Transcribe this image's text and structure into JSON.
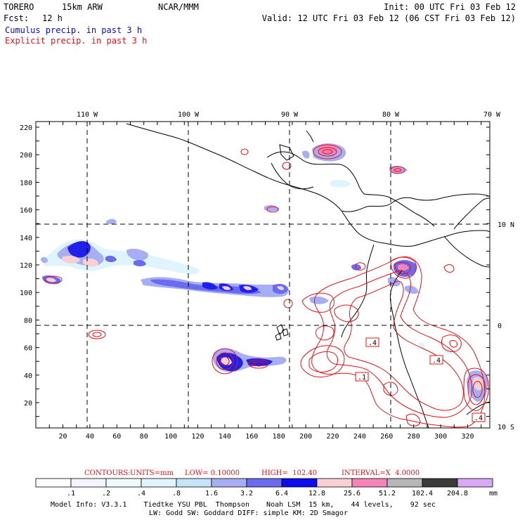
{
  "header": {
    "model": "TORERO",
    "resolution": "15km ARW",
    "source": "NCAR/MMM",
    "init": "Init: 00 UTC Fri 03 Feb 12",
    "fcst_label": "Fcst:",
    "fcst_value": "12 h",
    "valid": "Valid: 12 UTC Fri 03 Feb 12 (06 CST Fri 03 Feb 12)",
    "legend_cumulus": "Cumulus precip. in past 3 h",
    "legend_explicit": "Explicit precip. in past 3 h"
  },
  "map": {
    "top_lon_labels": [
      "110 W",
      "100 W",
      "90 W",
      "80 W",
      "70 W"
    ],
    "right_lat_labels": [
      "10 N",
      "0",
      "10 S"
    ],
    "left_ticks": [
      "220",
      "200",
      "180",
      "160",
      "140",
      "120",
      "100",
      "80",
      "60",
      "40",
      "20"
    ],
    "bottom_ticks": [
      "20",
      "40",
      "60",
      "80",
      "100",
      "120",
      "140",
      "160",
      "180",
      "200",
      "220",
      "240",
      "260",
      "280",
      "300",
      "320"
    ],
    "contour_labels": [
      ".4",
      ".1",
      ".4",
      ".4"
    ]
  },
  "contours_line": {
    "label": "CONTOURS:",
    "units": "UNITS=mm",
    "low": "LOW= 0.10000",
    "high": "HIGH=  102.40",
    "interval": "INTERVAL=X  4.0000"
  },
  "colorbar": {
    "labels": [
      ".1",
      ".2",
      ".4",
      ".8",
      "1.6",
      "3.2",
      "6.4",
      "12.8",
      "25.6",
      "51.2",
      "102.4",
      "204.8"
    ],
    "units": "mm",
    "colors": [
      "#ffffff",
      "#f4f4ff",
      "#eefaff",
      "#dff4fc",
      "#c6e4f8",
      "#a8aef4",
      "#6a6cf0",
      "#0c0cec",
      "#f8d0d4",
      "#f484b8",
      "#b6b6b6",
      "#3a3a3a",
      "#d8a8f4"
    ]
  },
  "footer": {
    "line1": "Model Info: V3.3.1    Tiedtke YSU PBL  Thompson    Noah LSM  15 km,    44 levels,    92 sec",
    "line2": "LW: Godd SW: Goddard DIFF: simple KM: 2D Smagor"
  }
}
